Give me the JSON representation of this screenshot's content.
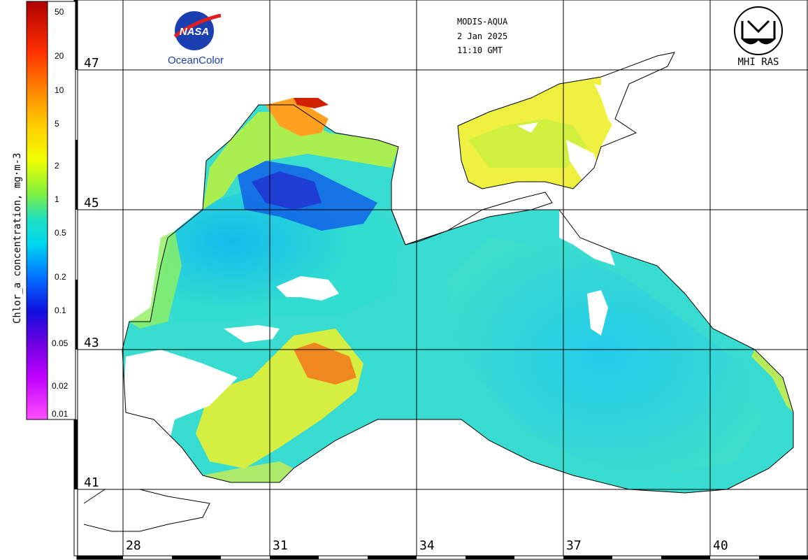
{
  "header": {
    "sensor": "MODIS-AQUA",
    "date": "2 Jan 2025",
    "time": "11:10 GMT"
  },
  "logos": {
    "left_badge": "NASA",
    "left_caption": "OceanColor",
    "right_caption": "MHI RAS"
  },
  "colorbar": {
    "title": "Chlor_a concentration, mg·m-3",
    "ticks": [
      "50",
      "20",
      "10",
      "5",
      "2",
      "1",
      "0.5",
      "0.2",
      "0.1",
      "0.05",
      "0.02",
      "0.01"
    ],
    "colors": [
      "#c00000",
      "#ff3000",
      "#ff8000",
      "#ffc000",
      "#ffff00",
      "#a0f000",
      "#40e080",
      "#00e0e0",
      "#0090ff",
      "#0020e0",
      "#6000e0",
      "#c000ff",
      "#ff40ff"
    ]
  },
  "grid": {
    "lat_labels": [
      "47",
      "45",
      "43",
      "41"
    ],
    "lon_labels": [
      "28",
      "31",
      "34",
      "37",
      "40"
    ]
  },
  "colors": {
    "land": "#ffffff",
    "coastline": "#000000",
    "grid": "#000000",
    "water_low": "#00c8e8",
    "water_mid": "#40e0c0",
    "water_high": "#f0e020"
  }
}
